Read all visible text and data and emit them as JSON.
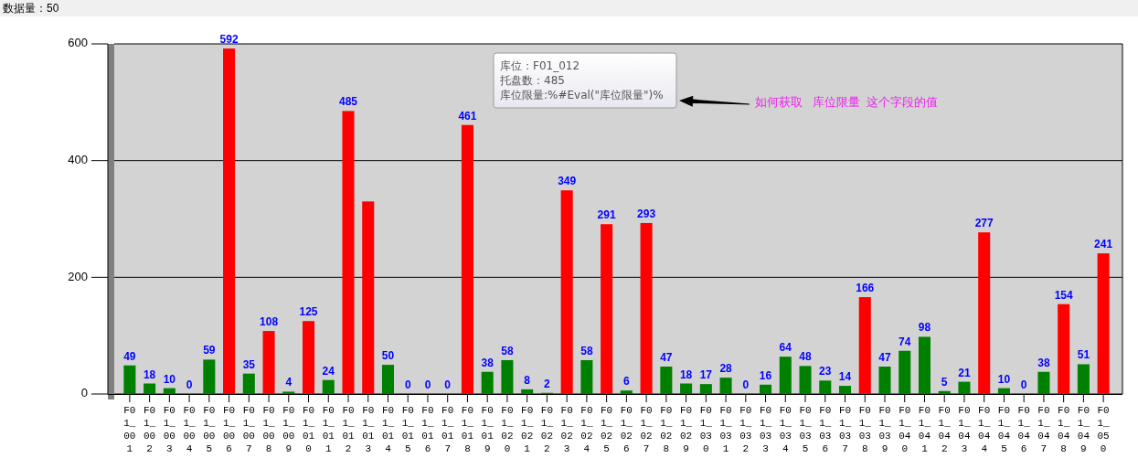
{
  "chart_data": {
    "type": "bar",
    "title": "数据量：50",
    "categories": [
      "F01_001",
      "F01_002",
      "F01_003",
      "F01_004",
      "F01_005",
      "F01_006",
      "F01_007",
      "F01_008",
      "F01_009",
      "F01_010",
      "F01_011",
      "F01_012",
      "F01_013",
      "F01_014",
      "F01_015",
      "F01_016",
      "F01_017",
      "F01_018",
      "F01_019",
      "F01_020",
      "F01_021",
      "F01_022",
      "F01_023",
      "F01_024",
      "F01_025",
      "F01_026",
      "F01_027",
      "F01_028",
      "F01_029",
      "F01_030",
      "F01_031",
      "F01_032",
      "F01_033",
      "F01_034",
      "F01_035",
      "F01_036",
      "F01_037",
      "F01_038",
      "F01_039",
      "F01_040",
      "F01_041",
      "F01_042",
      "F01_043",
      "F01_044",
      "F01_045",
      "F01_046",
      "F01_047",
      "F01_048",
      "F01_049",
      "F01_050"
    ],
    "values": [
      49,
      18,
      10,
      0,
      59,
      592,
      35,
      108,
      4,
      125,
      24,
      485,
      330,
      50,
      0,
      0,
      0,
      461,
      38,
      58,
      8,
      2,
      349,
      58,
      291,
      6,
      293,
      47,
      18,
      17,
      28,
      0,
      16,
      64,
      48,
      23,
      14,
      166,
      47,
      74,
      98,
      5,
      21,
      277,
      10,
      0,
      38,
      154,
      51,
      241
    ],
    "colors": [
      "#008000",
      "#008000",
      "#008000",
      "#008000",
      "#008000",
      "#ff0000",
      "#008000",
      "#ff0000",
      "#008000",
      "#ff0000",
      "#008000",
      "#ff0000",
      "#ff0000",
      "#008000",
      "#008000",
      "#008000",
      "#008000",
      "#ff0000",
      "#008000",
      "#008000",
      "#008000",
      "#008000",
      "#ff0000",
      "#008000",
      "#ff0000",
      "#008000",
      "#ff0000",
      "#008000",
      "#008000",
      "#008000",
      "#008000",
      "#008000",
      "#008000",
      "#008000",
      "#008000",
      "#008000",
      "#008000",
      "#ff0000",
      "#008000",
      "#008000",
      "#008000",
      "#008000",
      "#008000",
      "#ff0000",
      "#008000",
      "#008000",
      "#008000",
      "#ff0000",
      "#008000",
      "#ff0000"
    ],
    "value_labels": [
      "49",
      "18",
      "10",
      "0",
      "59",
      "592",
      "35",
      "108",
      "4",
      "125",
      "24",
      "485",
      null,
      "50",
      "0",
      "0",
      "0",
      "461",
      "38",
      "58",
      "8",
      "2",
      "349",
      "58",
      "291",
      "6",
      "293",
      "47",
      "18",
      "17",
      "28",
      "0",
      "16",
      "64",
      "48",
      "23",
      "14",
      "166",
      "47",
      "74",
      "98",
      "5",
      "21",
      "277",
      "10",
      "0",
      "38",
      "154",
      "51",
      "241"
    ],
    "ylim": [
      0,
      600
    ],
    "yticks": [
      0,
      200,
      400,
      600
    ],
    "grid": "y",
    "annotations": [
      "如何获取   库位限量  这个字段的值",
      "库位：F01_012",
      "托盘数：485",
      "库位限量:%#Eval(\"库位限量\")%"
    ]
  }
}
